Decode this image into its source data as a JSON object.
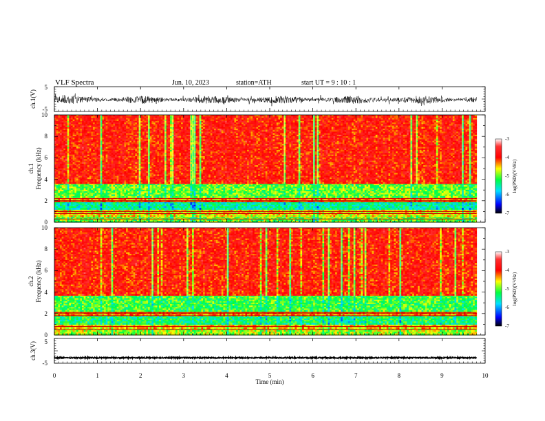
{
  "header": {
    "title": "VLF  Spectra",
    "date": "Jun. 10, 2023",
    "station": "station=ATH",
    "start_ut": "start  UT  =   9  : 10 : 1"
  },
  "chart_data": [
    {
      "type": "line",
      "name": "ch1-waveform",
      "ylabel": "ch.1(V)",
      "ylim": [
        -5,
        5
      ],
      "yticks": [
        "5",
        "-5"
      ],
      "xlim": [
        0,
        10
      ],
      "data_end_min": 9.8,
      "waveform": {
        "center": -0.3,
        "amplitude": 1.6,
        "style": "dense noise"
      }
    },
    {
      "type": "heatmap",
      "name": "ch1-spectrogram",
      "ylabel_line1": "ch.1",
      "ylabel_line2": "Frequency  (kHz)",
      "ylim": [
        0,
        10
      ],
      "yticks": [
        "10",
        "8",
        "6",
        "4",
        "2",
        "0"
      ],
      "xlim": [
        0,
        10
      ],
      "data_end_min": 9.8,
      "bands": [
        {
          "from_khz": 0.0,
          "to_khz": 0.5,
          "level": -5.0
        },
        {
          "from_khz": 0.5,
          "to_khz": 1.2,
          "level": -4.6
        },
        {
          "from_khz": 1.2,
          "to_khz": 1.9,
          "level": -5.5
        },
        {
          "from_khz": 1.9,
          "to_khz": 2.3,
          "level": -4.4
        },
        {
          "from_khz": 2.3,
          "to_khz": 3.6,
          "level": -5.0
        },
        {
          "from_khz": 3.6,
          "to_khz": 10.0,
          "level": -3.9
        }
      ],
      "lines_khz": [
        0.3,
        0.8,
        1.0,
        1.9,
        2.0,
        2.2
      ],
      "colorbar": {
        "label": "log(PSD)(V²/Hz)",
        "range": [
          -7,
          -3
        ],
        "ticks": [
          "-3",
          "-4",
          "-5",
          "-6",
          "-7"
        ]
      }
    },
    {
      "type": "heatmap",
      "name": "ch2-spectrogram",
      "ylabel_line1": "ch.2",
      "ylabel_line2": "Frequency  (kHz)",
      "ylim": [
        0,
        10
      ],
      "yticks": [
        "10",
        "8",
        "6",
        "4",
        "2",
        "0"
      ],
      "xlim": [
        0,
        10
      ],
      "data_end_min": 9.8,
      "bands": [
        {
          "from_khz": 0.0,
          "to_khz": 0.6,
          "level": -4.8
        },
        {
          "from_khz": 0.6,
          "to_khz": 1.0,
          "level": -4.5
        },
        {
          "from_khz": 1.0,
          "to_khz": 1.8,
          "level": -5.3
        },
        {
          "from_khz": 1.8,
          "to_khz": 2.2,
          "level": -4.3
        },
        {
          "from_khz": 2.2,
          "to_khz": 3.7,
          "level": -5.1
        },
        {
          "from_khz": 3.7,
          "to_khz": 10.0,
          "level": -3.9
        }
      ],
      "lines_khz": [
        0.5,
        0.8,
        1.8,
        2.0,
        2.1
      ],
      "colorbar": {
        "label": "log(PSD)(V²/Hz)",
        "range": [
          -7,
          -3
        ],
        "ticks": [
          "-3",
          "-4",
          "-5",
          "-6",
          "-7"
        ]
      }
    },
    {
      "type": "line",
      "name": "ch3-waveform",
      "ylabel": "ch.3(V)",
      "ylim": [
        -5,
        5
      ],
      "yticks": [
        "5",
        "-5"
      ],
      "xlim": [
        0,
        10
      ],
      "data_end_min": 9.8,
      "waveform": {
        "center": -2.8,
        "amplitude": 0.25,
        "style": "flat thick"
      }
    }
  ],
  "x_axis": {
    "xlabel": "Time  (min)",
    "ticks": [
      "0",
      "1",
      "2",
      "3",
      "4",
      "5",
      "6",
      "7",
      "8",
      "9",
      "10"
    ]
  },
  "colors": {
    "colorscale": [
      "#000000",
      "#0000ff",
      "#00e0ff",
      "#00ff40",
      "#ffff00",
      "#ff0000",
      "#ffffff"
    ],
    "waveform": "#000000"
  }
}
